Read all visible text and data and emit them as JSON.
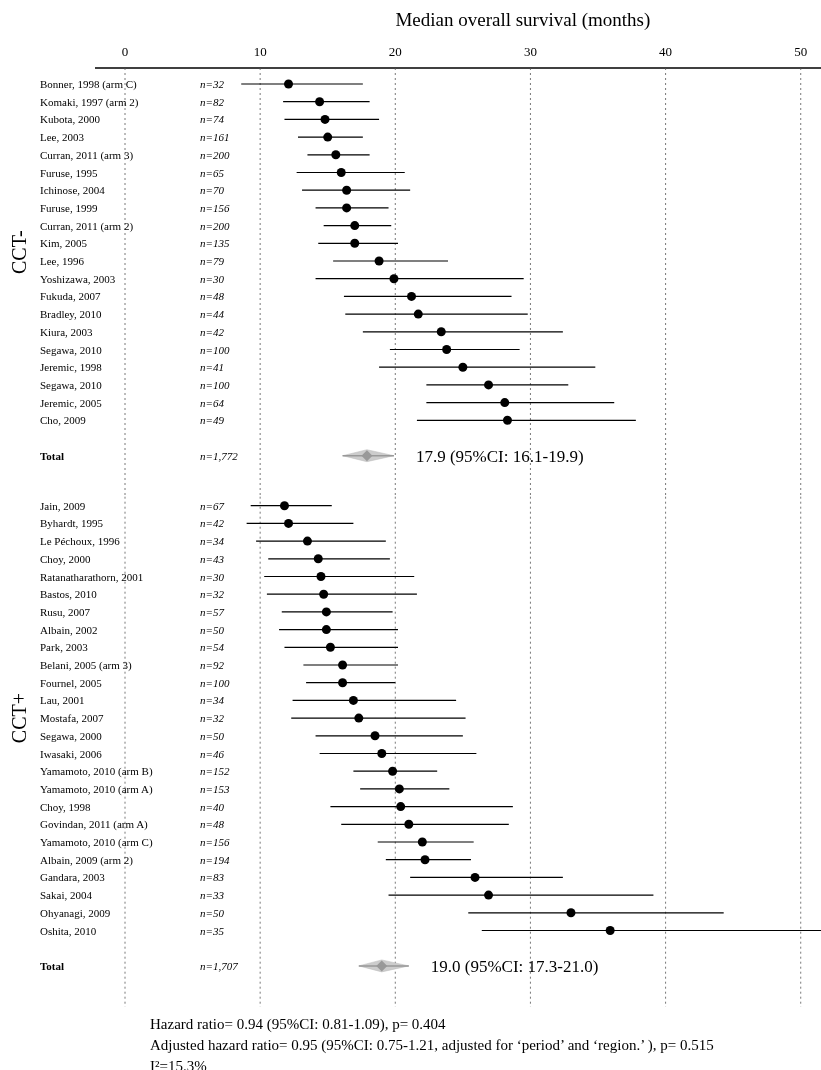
{
  "chart_data": [
    {
      "type": "scatter",
      "orientation": "horizontal",
      "xlabel": "Median overall survival (months)",
      "ylabel": "CCT-",
      "xlim": [
        0,
        51.5
      ],
      "xticks": [
        0,
        10,
        20,
        30,
        40,
        50
      ],
      "grid": "x",
      "categories": [
        "Bonner, 1998 (arm C)",
        "Komaki, 1997 (arm 2)",
        "Kubota, 2000",
        "Lee, 2003",
        "Curran, 2011 (arm 3)",
        "Furuse, 1995",
        "Ichinose, 2004",
        "Furuse, 1999",
        "Curran, 2011 (arm 2)",
        "Kim, 2005",
        "Lee, 1996",
        "Yoshizawa, 2003",
        "Fukuda, 2007",
        "Bradley, 2010",
        "Kiura, 2003",
        "Segawa, 2010",
        "Jeremic, 1998",
        "Segawa, 2010",
        "Jeremic, 2005",
        "Cho, 2009",
        "Total"
      ],
      "y2_categories": [
        "n=32",
        "n=82",
        "n=74",
        "n=161",
        "n=200",
        "n=65",
        "n=70",
        "n=156",
        "n=200",
        "n=135",
        "n=79",
        "n=30",
        "n=48",
        "n=44",
        "n=42",
        "n=100",
        "n=41",
        "n=100",
        "n=64",
        "n=49",
        "n=1,772"
      ],
      "series": [
        {
          "color": "#000000",
          "marker": "circle",
          "values": [
            12.1,
            14.4,
            14.8,
            15.0,
            15.6,
            16.0,
            16.4,
            16.4,
            17.0,
            17.0,
            18.8,
            19.9,
            21.2,
            21.7,
            23.4,
            23.8,
            25.0,
            26.9,
            28.1,
            28.3,
            null
          ],
          "errors": [
            [
              8.6,
              17.6
            ],
            [
              11.7,
              18.1
            ],
            [
              11.8,
              18.8
            ],
            [
              12.8,
              17.6
            ],
            [
              13.5,
              18.1
            ],
            [
              12.7,
              20.7
            ],
            [
              13.1,
              21.1
            ],
            [
              14.1,
              19.5
            ],
            [
              14.7,
              19.7
            ],
            [
              14.3,
              20.2
            ],
            [
              15.4,
              23.9
            ],
            [
              14.1,
              29.5
            ],
            [
              16.2,
              28.6
            ],
            [
              16.3,
              29.8
            ],
            [
              17.6,
              32.4
            ],
            [
              19.6,
              29.2
            ],
            [
              18.8,
              34.8
            ],
            [
              22.3,
              32.8
            ],
            [
              22.3,
              36.2
            ],
            [
              21.6,
              37.8
            ],
            null
          ]
        },
        {
          "color": "#999999",
          "marker": "diamond",
          "values": [
            null,
            null,
            null,
            null,
            null,
            null,
            null,
            null,
            null,
            null,
            null,
            null,
            null,
            null,
            null,
            null,
            null,
            null,
            null,
            null,
            17.9
          ],
          "errors": [
            null,
            null,
            null,
            null,
            null,
            null,
            null,
            null,
            null,
            null,
            null,
            null,
            null,
            null,
            null,
            null,
            null,
            null,
            null,
            null,
            [
              16.1,
              19.9
            ]
          ],
          "value_labels": [
            null,
            null,
            null,
            null,
            null,
            null,
            null,
            null,
            null,
            null,
            null,
            null,
            null,
            null,
            null,
            null,
            null,
            null,
            null,
            null,
            "17.9 (95%CI: 16.1-19.9)"
          ]
        }
      ]
    },
    {
      "type": "scatter",
      "orientation": "horizontal",
      "ylabel": "CCT+",
      "xlim": [
        0,
        51.5
      ],
      "tick_labels": "y",
      "grid": "x",
      "categories": [
        "Jain, 2009",
        "Byhardt, 1995",
        "Le Péchoux, 1996",
        "Choy, 2000",
        "Ratanatharathorn, 2001",
        "Bastos, 2010",
        "Rusu, 2007",
        "Albain, 2002",
        "Park, 2003",
        "Belani, 2005 (arm 3)",
        "Fournel, 2005",
        "Lau, 2001",
        "Mostafa, 2007",
        "Segawa, 2000",
        "Iwasaki, 2006",
        "Yamamoto, 2010 (arm B)",
        "Yamamoto, 2010 (arm A)",
        "Choy, 1998",
        "Govindan, 2011 (arm A)",
        "Yamamoto, 2010 (arm C)",
        "Albain, 2009 (arm 2)",
        "Gandara, 2003",
        "Sakai, 2004",
        "Ohyanagi, 2009",
        "Oshita, 2010",
        "Total"
      ],
      "y2_categories": [
        "n=67",
        "n=42",
        "n=34",
        "n=43",
        "n=30",
        "n=32",
        "n=57",
        "n=50",
        "n=54",
        "n=92",
        "n=100",
        "n=34",
        "n=32",
        "n=50",
        "n=46",
        "n=152",
        "n=153",
        "n=40",
        "n=48",
        "n=156",
        "n=194",
        "n=83",
        "n=33",
        "n=50",
        "n=35",
        "n=1,707"
      ],
      "series": [
        {
          "color": "#000000",
          "marker": "circle",
          "values": [
            11.8,
            12.1,
            13.5,
            14.3,
            14.5,
            14.7,
            14.9,
            14.9,
            15.2,
            16.1,
            16.1,
            16.9,
            17.3,
            18.5,
            19.0,
            19.8,
            20.3,
            20.4,
            21.0,
            22.0,
            22.2,
            25.9,
            26.9,
            33.0,
            35.9,
            null
          ],
          "errors": [
            [
              9.3,
              15.3
            ],
            [
              9.0,
              16.9
            ],
            [
              9.7,
              19.3
            ],
            [
              10.6,
              19.6
            ],
            [
              10.3,
              21.4
            ],
            [
              10.5,
              21.6
            ],
            [
              11.6,
              19.8
            ],
            [
              11.4,
              20.2
            ],
            [
              11.8,
              20.2
            ],
            [
              13.2,
              20.2
            ],
            [
              13.4,
              20.0
            ],
            [
              12.4,
              24.5
            ],
            [
              12.3,
              25.2
            ],
            [
              14.1,
              25.0
            ],
            [
              14.4,
              26.0
            ],
            [
              16.9,
              23.1
            ],
            [
              17.4,
              24.0
            ],
            [
              15.2,
              28.7
            ],
            [
              16.0,
              28.4
            ],
            [
              18.7,
              25.8
            ],
            [
              19.3,
              25.6
            ],
            [
              21.1,
              32.4
            ],
            [
              19.5,
              39.1
            ],
            [
              25.4,
              44.3
            ],
            [
              26.4,
              51.5
            ],
            null
          ]
        },
        {
          "color": "#999999",
          "marker": "diamond",
          "values": [
            null,
            null,
            null,
            null,
            null,
            null,
            null,
            null,
            null,
            null,
            null,
            null,
            null,
            null,
            null,
            null,
            null,
            null,
            null,
            null,
            null,
            null,
            null,
            null,
            null,
            19.0
          ],
          "errors": [
            null,
            null,
            null,
            null,
            null,
            null,
            null,
            null,
            null,
            null,
            null,
            null,
            null,
            null,
            null,
            null,
            null,
            null,
            null,
            null,
            null,
            null,
            null,
            null,
            null,
            [
              17.3,
              21.0
            ]
          ],
          "value_labels": [
            null,
            null,
            null,
            null,
            null,
            null,
            null,
            null,
            null,
            null,
            null,
            null,
            null,
            null,
            null,
            null,
            null,
            null,
            null,
            null,
            null,
            null,
            null,
            null,
            null,
            "19.0 (95%CI: 17.3-21.0)"
          ]
        }
      ],
      "annotations": [
        "Hazard ratio= 0.94 (95%CI: 0.81-1.09), p= 0.404",
        "Adjusted hazard ratio= 0.95 (95%CI: 0.75-1.21, adjusted for ‘period’ and ‘region.’ ), p= 0.515",
        "I²=15.3%"
      ]
    }
  ]
}
